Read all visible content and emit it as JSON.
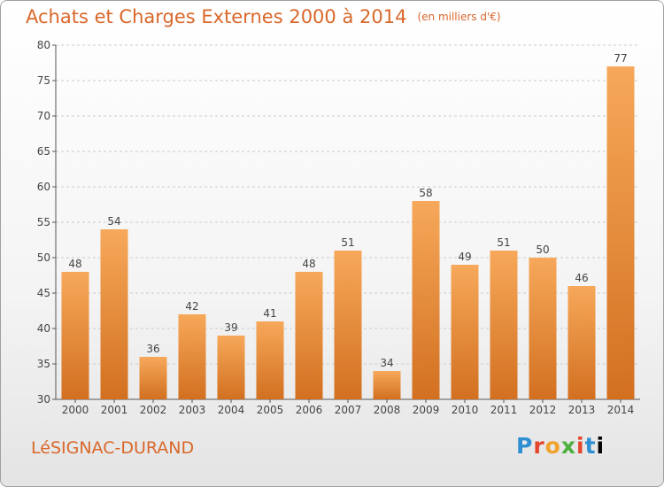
{
  "header": {
    "title": "Achats et Charges Externes 2000 à 2014",
    "unit": "(en milliers d'€)"
  },
  "footer": {
    "place": "LéSIGNAC-DURAND",
    "logo_letters": [
      "P",
      "r",
      "o",
      "x",
      "i",
      "t",
      "i"
    ]
  },
  "colors": {
    "title": "#d9672a",
    "bar_light": "#f7a85a",
    "bar_dark": "#d27020",
    "grid": "#cccccc"
  },
  "chart_data": {
    "type": "bar",
    "title": "Achats et Charges Externes 2000 à 2014",
    "subtitle": "(en milliers d'€)",
    "categories": [
      "2000",
      "2001",
      "2002",
      "2003",
      "2004",
      "2005",
      "2006",
      "2007",
      "2008",
      "2009",
      "2010",
      "2011",
      "2012",
      "2013",
      "2014"
    ],
    "values": [
      48,
      54,
      36,
      42,
      39,
      41,
      48,
      51,
      34,
      58,
      49,
      51,
      50,
      46,
      77
    ],
    "ylim": [
      30,
      80
    ],
    "yticks": [
      30,
      35,
      40,
      45,
      50,
      55,
      60,
      65,
      70,
      75,
      80
    ],
    "grid": "horizontal dashed",
    "xlabel": "",
    "ylabel": ""
  }
}
